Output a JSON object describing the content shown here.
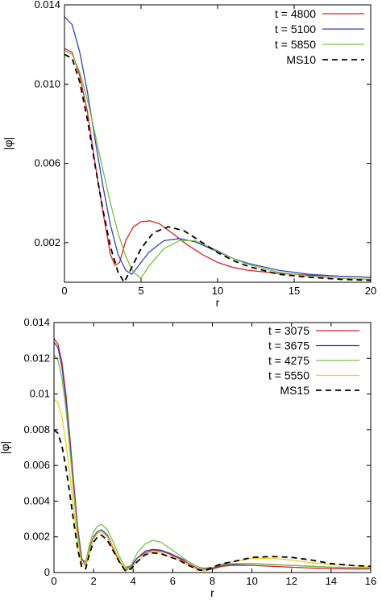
{
  "chart_data": [
    {
      "type": "line",
      "xlabel": "r",
      "ylabel": "|φ|",
      "xlim": [
        0,
        20
      ],
      "ylim": [
        0,
        0.014
      ],
      "xticks": [
        "0",
        "5",
        "10",
        "15",
        "20"
      ],
      "yticks": [
        "0.002",
        "0.006",
        "0.010",
        "0.014"
      ],
      "ytick_values": [
        0.002,
        0.006,
        0.01,
        0.014
      ],
      "grid": false,
      "legend_position": "top-right",
      "series": [
        {
          "name": "t = 4800",
          "color": "#dd2222",
          "dash": "solid",
          "x": [
            0,
            0.5,
            1,
            1.5,
            2,
            2.5,
            3,
            3.3,
            3.6,
            4,
            4.5,
            5,
            5.6,
            6.2,
            7,
            8,
            9,
            10,
            11,
            12,
            14,
            16,
            18,
            20
          ],
          "y": [
            0.0118,
            0.0116,
            0.0104,
            0.0086,
            0.006,
            0.0036,
            0.0014,
            0.00085,
            0.001,
            0.0021,
            0.0028,
            0.00305,
            0.0031,
            0.00295,
            0.0025,
            0.0019,
            0.0014,
            0.001,
            0.00075,
            0.0006,
            0.00045,
            0.00035,
            0.0003,
            0.00025
          ]
        },
        {
          "name": "t = 5100",
          "color": "#3344bb",
          "dash": "solid",
          "x": [
            0,
            0.5,
            1,
            1.5,
            2,
            2.5,
            3,
            3.5,
            4,
            4.4,
            4.8,
            5.5,
            6.5,
            7.5,
            8.5,
            10,
            11,
            12,
            14,
            16,
            18,
            20
          ],
          "y": [
            0.0134,
            0.013,
            0.0116,
            0.0096,
            0.0072,
            0.0049,
            0.0029,
            0.0014,
            0.0006,
            0.0004,
            0.0008,
            0.0015,
            0.0021,
            0.0022,
            0.00205,
            0.00155,
            0.0012,
            0.00095,
            0.0006,
            0.0004,
            0.0003,
            0.00025
          ]
        },
        {
          "name": "t = 5850",
          "color": "#77c044",
          "dash": "solid",
          "x": [
            0,
            0.5,
            1,
            1.5,
            2,
            2.5,
            3,
            3.5,
            4,
            4.5,
            5,
            5.5,
            6.5,
            7.5,
            8.5,
            10,
            11,
            12,
            14,
            16,
            18,
            20
          ],
          "y": [
            0.0117,
            0.0115,
            0.0106,
            0.0092,
            0.0075,
            0.0057,
            0.004,
            0.0025,
            0.0013,
            0.0005,
            0.0002,
            0.0008,
            0.0017,
            0.0021,
            0.0021,
            0.0016,
            0.0012,
            0.0009,
            0.0005,
            0.0003,
            0.0002,
            0.00015
          ]
        },
        {
          "name": "MS10",
          "color": "#000000",
          "dash": "dashed",
          "x": [
            0,
            0.5,
            1,
            1.5,
            2,
            2.5,
            3,
            3.5,
            3.9,
            4.3,
            5,
            5.8,
            6.8,
            7.8,
            8.8,
            10,
            11,
            12,
            14,
            16,
            18,
            20
          ],
          "y": [
            0.0115,
            0.0113,
            0.0101,
            0.0082,
            0.0059,
            0.0037,
            0.0018,
            0.0005,
            0.0,
            0.0006,
            0.0017,
            0.0025,
            0.0028,
            0.0026,
            0.0021,
            0.0015,
            0.0011,
            0.0008,
            0.0004,
            0.00025,
            0.00015,
            0.0001
          ]
        }
      ]
    },
    {
      "type": "line",
      "xlabel": "r",
      "ylabel": "|φ|",
      "xlim": [
        0,
        16
      ],
      "ylim": [
        0,
        0.014
      ],
      "xticks": [
        "0",
        "2",
        "4",
        "6",
        "8",
        "10",
        "12",
        "14",
        "16"
      ],
      "yticks": [
        "0",
        "0.002",
        "0.004",
        "0.006",
        "0.008",
        "0.01",
        "0.012",
        "0.014"
      ],
      "ytick_values": [
        0,
        0.002,
        0.004,
        0.006,
        0.008,
        0.01,
        0.012,
        0.014
      ],
      "grid": false,
      "legend_position": "top-right",
      "series": [
        {
          "name": "t = 3075",
          "color": "#dd2222",
          "dash": "solid",
          "x": [
            0,
            0.2,
            0.4,
            0.6,
            0.8,
            1.0,
            1.2,
            1.4,
            1.6,
            1.8,
            2.0,
            2.2,
            2.4,
            2.7,
            3.0,
            3.3,
            3.6,
            3.9,
            4.2,
            4.6,
            5.0,
            5.4,
            5.8,
            6.3,
            6.8,
            7.3,
            7.6,
            8.0,
            8.5,
            9.0,
            10,
            11,
            12,
            13,
            14,
            15,
            16
          ],
          "y": [
            0.0131,
            0.0128,
            0.0118,
            0.01,
            0.0076,
            0.005,
            0.0025,
            0.0008,
            0.0004,
            0.0012,
            0.0019,
            0.0022,
            0.0023,
            0.002,
            0.0013,
            0.0006,
            0.0002,
            0.0004,
            0.0008,
            0.0011,
            0.00125,
            0.0012,
            0.00105,
            0.0008,
            0.0005,
            0.0002,
            0.0001,
            0.0002,
            0.00035,
            0.0004,
            0.0004,
            0.00035,
            0.0003,
            0.00025,
            0.00022,
            0.0002,
            0.0002
          ]
        },
        {
          "name": "t = 3675",
          "color": "#3344bb",
          "dash": "solid",
          "x": [
            0,
            0.2,
            0.4,
            0.6,
            0.8,
            1.0,
            1.2,
            1.4,
            1.6,
            1.8,
            2.0,
            2.2,
            2.4,
            2.7,
            3.0,
            3.3,
            3.6,
            3.9,
            4.2,
            4.6,
            5.0,
            5.4,
            5.8,
            6.3,
            6.8,
            7.3,
            7.6,
            8.0,
            8.5,
            9.0,
            10,
            11,
            12,
            13,
            14,
            15,
            16
          ],
          "y": [
            0.0129,
            0.0126,
            0.0115,
            0.0097,
            0.0073,
            0.0047,
            0.0023,
            0.0007,
            0.0006,
            0.0014,
            0.002,
            0.0023,
            0.0024,
            0.0021,
            0.0014,
            0.0007,
            0.0001,
            0.0003,
            0.0008,
            0.0012,
            0.0013,
            0.00125,
            0.0011,
            0.00085,
            0.0006,
            0.0003,
            0.0002,
            0.00025,
            0.0004,
            0.00045,
            0.0005,
            0.00045,
            0.0004,
            0.00035,
            0.0003,
            0.00028,
            0.00025
          ]
        },
        {
          "name": "t = 4275",
          "color": "#77c044",
          "dash": "solid",
          "x": [
            0,
            0.2,
            0.4,
            0.6,
            0.8,
            1.0,
            1.2,
            1.4,
            1.6,
            1.8,
            2.0,
            2.2,
            2.4,
            2.7,
            3.0,
            3.3,
            3.6,
            3.9,
            4.2,
            4.6,
            5.0,
            5.4,
            5.8,
            6.3,
            6.8,
            7.3,
            7.6,
            8.0,
            8.5,
            9.0,
            10,
            11,
            12,
            13,
            14,
            15,
            16
          ],
          "y": [
            0.0122,
            0.0119,
            0.0109,
            0.0092,
            0.0069,
            0.0044,
            0.0021,
            0.0005,
            0.0006,
            0.0016,
            0.0023,
            0.0026,
            0.0027,
            0.0024,
            0.0017,
            0.0009,
            0.0003,
            0.0004,
            0.0011,
            0.0016,
            0.0018,
            0.0017,
            0.0014,
            0.001,
            0.0006,
            0.0003,
            0.00025,
            0.0003,
            0.00045,
            0.0005,
            0.0005,
            0.00045,
            0.0004,
            0.00035,
            0.0003,
            0.00028,
            0.00025
          ]
        },
        {
          "name": "t = 5550",
          "color": "#eecc22",
          "dash": "solid",
          "x": [
            0,
            0.2,
            0.4,
            0.6,
            0.8,
            1.0,
            1.2,
            1.4,
            1.6,
            1.8,
            2.0,
            2.2,
            2.4,
            2.7,
            3.0,
            3.3,
            3.6,
            3.9,
            4.2,
            4.6,
            5.0,
            5.4,
            5.8,
            6.3,
            6.8,
            7.3,
            7.6,
            8.0,
            8.5,
            9.0,
            10,
            11,
            12,
            13,
            14,
            15,
            16
          ],
          "y": [
            0.0097,
            0.0095,
            0.0087,
            0.0073,
            0.0055,
            0.0035,
            0.0017,
            0.0004,
            0.0005,
            0.0013,
            0.0019,
            0.0022,
            0.0023,
            0.002,
            0.0014,
            0.0007,
            0.0002,
            0.0002,
            0.0006,
            0.001,
            0.00115,
            0.0011,
            0.0009,
            0.0007,
            0.0004,
            0.00015,
            0.0001,
            0.0003,
            0.0005,
            0.0006,
            0.0008,
            0.0008,
            0.0007,
            0.00055,
            0.00045,
            0.0004,
            0.0003
          ]
        },
        {
          "name": "MS15",
          "color": "#000000",
          "dash": "dashed",
          "x": [
            0,
            0.2,
            0.4,
            0.6,
            0.8,
            1.0,
            1.2,
            1.4,
            1.6,
            1.8,
            2.0,
            2.2,
            2.4,
            2.7,
            3.0,
            3.3,
            3.6,
            3.9,
            4.2,
            4.6,
            5.0,
            5.4,
            5.8,
            6.3,
            6.8,
            7.3,
            7.6,
            8.0,
            8.5,
            9.0,
            10,
            11,
            12,
            13,
            14,
            15,
            16
          ],
          "y": [
            0.008,
            0.0078,
            0.0071,
            0.0059,
            0.0044,
            0.0028,
            0.0013,
            0.0003,
            0.0002,
            0.0011,
            0.0017,
            0.002,
            0.0021,
            0.0018,
            0.0012,
            0.0006,
            0.0001,
            0.0002,
            0.0006,
            0.001,
            0.0011,
            0.00105,
            0.0009,
            0.0007,
            0.0004,
            0.00015,
            0.0001,
            0.0003,
            0.0005,
            0.0006,
            0.00085,
            0.0009,
            0.00085,
            0.0007,
            0.0005,
            0.0004,
            0.00035
          ]
        }
      ]
    }
  ]
}
